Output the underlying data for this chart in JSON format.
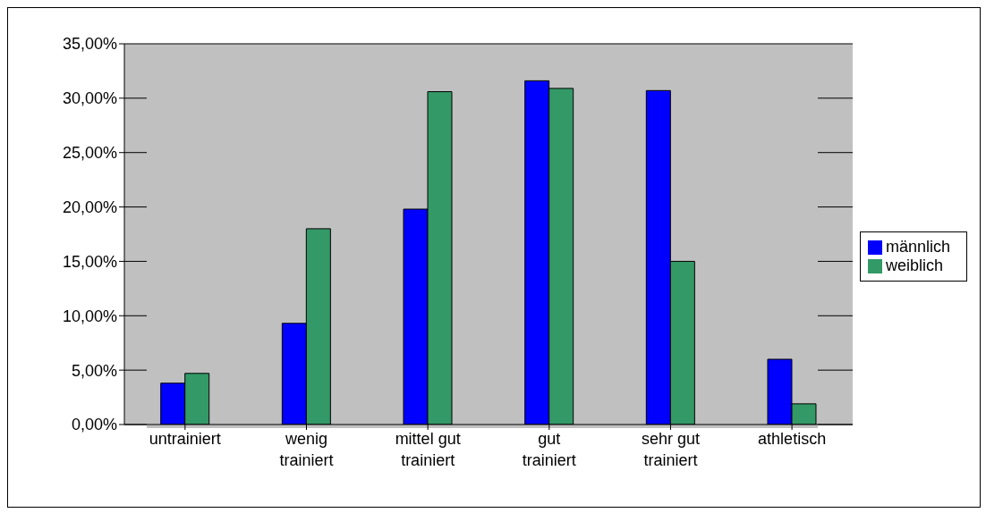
{
  "chart_data": {
    "type": "bar",
    "categories": [
      "untrainiert",
      "wenig trainiert",
      "mittel gut trainiert",
      "gut trainiert",
      "sehr gut trainiert",
      "athletisch"
    ],
    "series": [
      {
        "name": "männlich",
        "color": "#0000ff",
        "values": [
          3.8,
          9.3,
          19.8,
          31.6,
          30.7,
          6.0
        ]
      },
      {
        "name": "weiblich",
        "color": "#339966",
        "values": [
          4.7,
          18.0,
          30.6,
          30.9,
          15.0,
          1.9
        ]
      }
    ],
    "ylim": [
      0,
      35
    ],
    "yticks": [
      {
        "value": 0,
        "label": "0,00%"
      },
      {
        "value": 5,
        "label": "5,00%"
      },
      {
        "value": 10,
        "label": "10,00%"
      },
      {
        "value": 15,
        "label": "15,00%"
      },
      {
        "value": 20,
        "label": "20,00%"
      },
      {
        "value": 25,
        "label": "25,00%"
      },
      {
        "value": 30,
        "label": "30,00%"
      },
      {
        "value": 35,
        "label": "35,00%"
      }
    ],
    "grid": "y",
    "legend": "right"
  }
}
